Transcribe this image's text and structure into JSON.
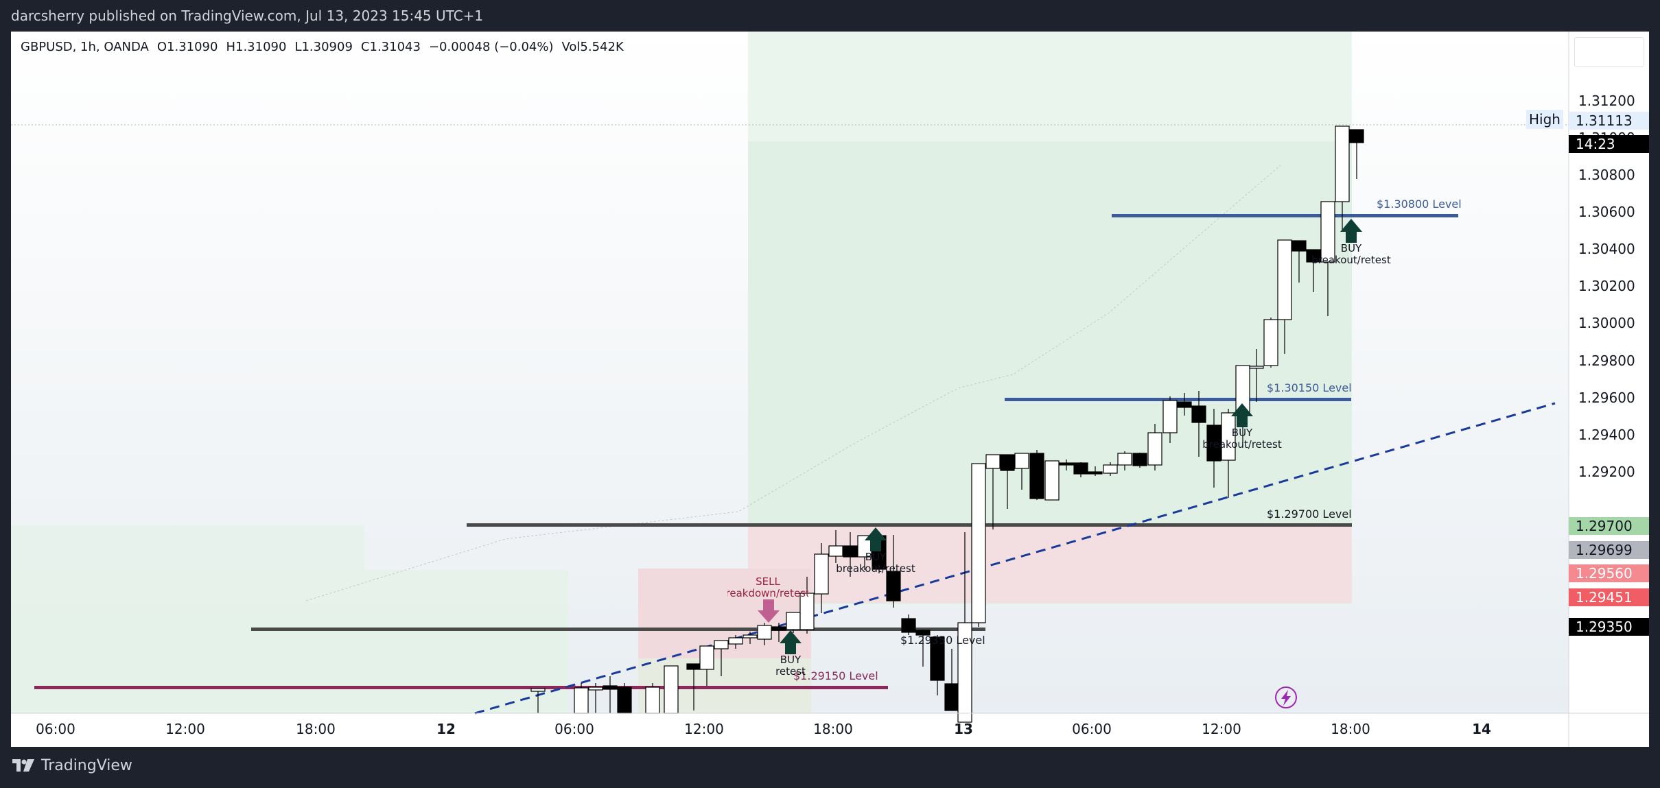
{
  "publish_line": "darcsherry published on TradingView.com, Jul 13, 2023 15:45 UTC+1",
  "header": {
    "symbol": "GBPUSD, 1h, OANDA",
    "open": "O1.31090",
    "high": "H1.31090",
    "low": "L1.30909",
    "close": "C1.31043",
    "change": "−0.00048 (−0.04%)",
    "volume": "Vol5.542K"
  },
  "price_axis": {
    "ticks": [
      "1.31200",
      "1.31000",
      "1.30800",
      "1.30600",
      "1.30400",
      "1.30200",
      "1.30000",
      "1.29800",
      "1.29600",
      "1.29400",
      "1.29200"
    ]
  },
  "price_labels": {
    "high_label": "High",
    "high_price": "1.31113",
    "timer": "14:23",
    "l1": "1.29700",
    "l2": "1.29699",
    "l3": "1.29560",
    "l4": "1.29451",
    "l5": "1.29350"
  },
  "time_axis": {
    "ticks": [
      "06:00",
      "12:00",
      "18:00",
      "12",
      "06:00",
      "12:00",
      "18:00",
      "13",
      "06:00",
      "12:00",
      "18:00",
      "14"
    ]
  },
  "levels": {
    "l130800": "$1.30800 Level",
    "l130150": "$1.30150 Level",
    "l129700": "$1.29700 Level",
    "l129350": "$1.29350 Level",
    "l129150": "$1.29150 Level"
  },
  "annotations": {
    "buy": "BUY",
    "breakout_retest": "breakout/retest",
    "retest": "retest",
    "sell": "SELL",
    "breakdown_retest": "breakdown/retest"
  },
  "bottom": {
    "brand": "TradingView"
  },
  "colors": {
    "up_candle": "#ffffff",
    "down_candle": "#000000",
    "level_blue": "#3d5a99",
    "level_dark": "#4a4a4a",
    "level_purple": "#8a2a5a",
    "trendline": "#1a3a9a",
    "arrow_buy": "#0f3f34",
    "arrow_sell": "#c06090"
  }
}
